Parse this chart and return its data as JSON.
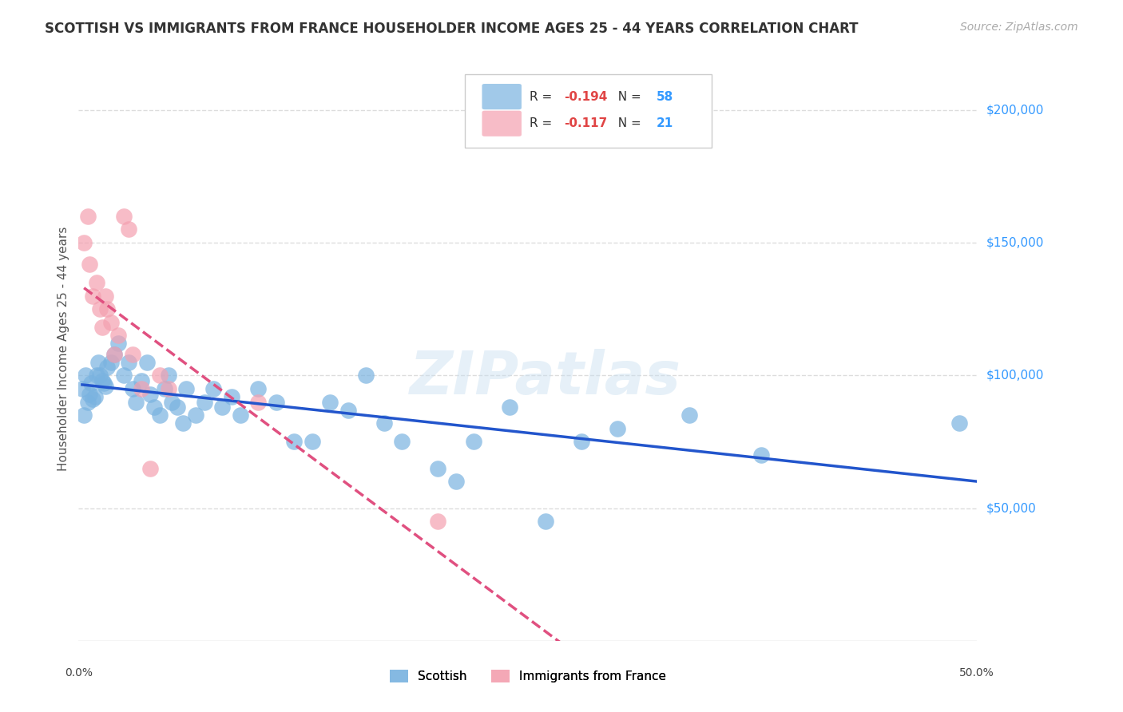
{
  "title": "SCOTTISH VS IMMIGRANTS FROM FRANCE HOUSEHOLDER INCOME AGES 25 - 44 YEARS CORRELATION CHART",
  "source": "Source: ZipAtlas.com",
  "ylabel": "Householder Income Ages 25 - 44 years",
  "xlim": [
    0.0,
    0.5
  ],
  "ylim": [
    0,
    220000
  ],
  "xticks": [
    0.0,
    0.05,
    0.1,
    0.15,
    0.2,
    0.25,
    0.3,
    0.35,
    0.4,
    0.45,
    0.5
  ],
  "background_color": "#ffffff",
  "grid_color": "#dddddd",
  "watermark": "ZIPatlas",
  "legend_R_scottish": "-0.194",
  "legend_N_scottish": "58",
  "legend_R_france": "-0.117",
  "legend_N_france": "21",
  "scottish_color": "#7ab3e0",
  "france_color": "#f4a0b0",
  "trend_scottish_color": "#2255cc",
  "trend_france_color": "#e05080",
  "scottish_x": [
    0.002,
    0.003,
    0.004,
    0.005,
    0.006,
    0.007,
    0.008,
    0.009,
    0.01,
    0.011,
    0.012,
    0.013,
    0.014,
    0.015,
    0.016,
    0.018,
    0.02,
    0.022,
    0.025,
    0.028,
    0.03,
    0.032,
    0.035,
    0.038,
    0.04,
    0.042,
    0.045,
    0.048,
    0.05,
    0.052,
    0.055,
    0.058,
    0.06,
    0.065,
    0.07,
    0.075,
    0.08,
    0.085,
    0.09,
    0.1,
    0.11,
    0.12,
    0.13,
    0.14,
    0.15,
    0.16,
    0.17,
    0.18,
    0.2,
    0.21,
    0.22,
    0.24,
    0.26,
    0.28,
    0.3,
    0.34,
    0.38,
    0.49
  ],
  "scottish_y": [
    95000,
    85000,
    100000,
    90000,
    93000,
    97000,
    91000,
    92000,
    100000,
    105000,
    100000,
    98000,
    97000,
    96000,
    103000,
    105000,
    108000,
    112000,
    100000,
    105000,
    95000,
    90000,
    98000,
    105000,
    93000,
    88000,
    85000,
    95000,
    100000,
    90000,
    88000,
    82000,
    95000,
    85000,
    90000,
    95000,
    88000,
    92000,
    85000,
    95000,
    90000,
    75000,
    75000,
    90000,
    87000,
    100000,
    82000,
    75000,
    65000,
    60000,
    75000,
    88000,
    45000,
    75000,
    80000,
    85000,
    70000,
    82000
  ],
  "france_x": [
    0.003,
    0.005,
    0.006,
    0.008,
    0.01,
    0.012,
    0.013,
    0.015,
    0.016,
    0.018,
    0.02,
    0.022,
    0.025,
    0.028,
    0.03,
    0.035,
    0.04,
    0.045,
    0.05,
    0.1,
    0.2
  ],
  "france_y": [
    150000,
    160000,
    142000,
    130000,
    135000,
    125000,
    118000,
    130000,
    125000,
    120000,
    108000,
    115000,
    160000,
    155000,
    108000,
    95000,
    65000,
    100000,
    95000,
    90000,
    45000
  ]
}
